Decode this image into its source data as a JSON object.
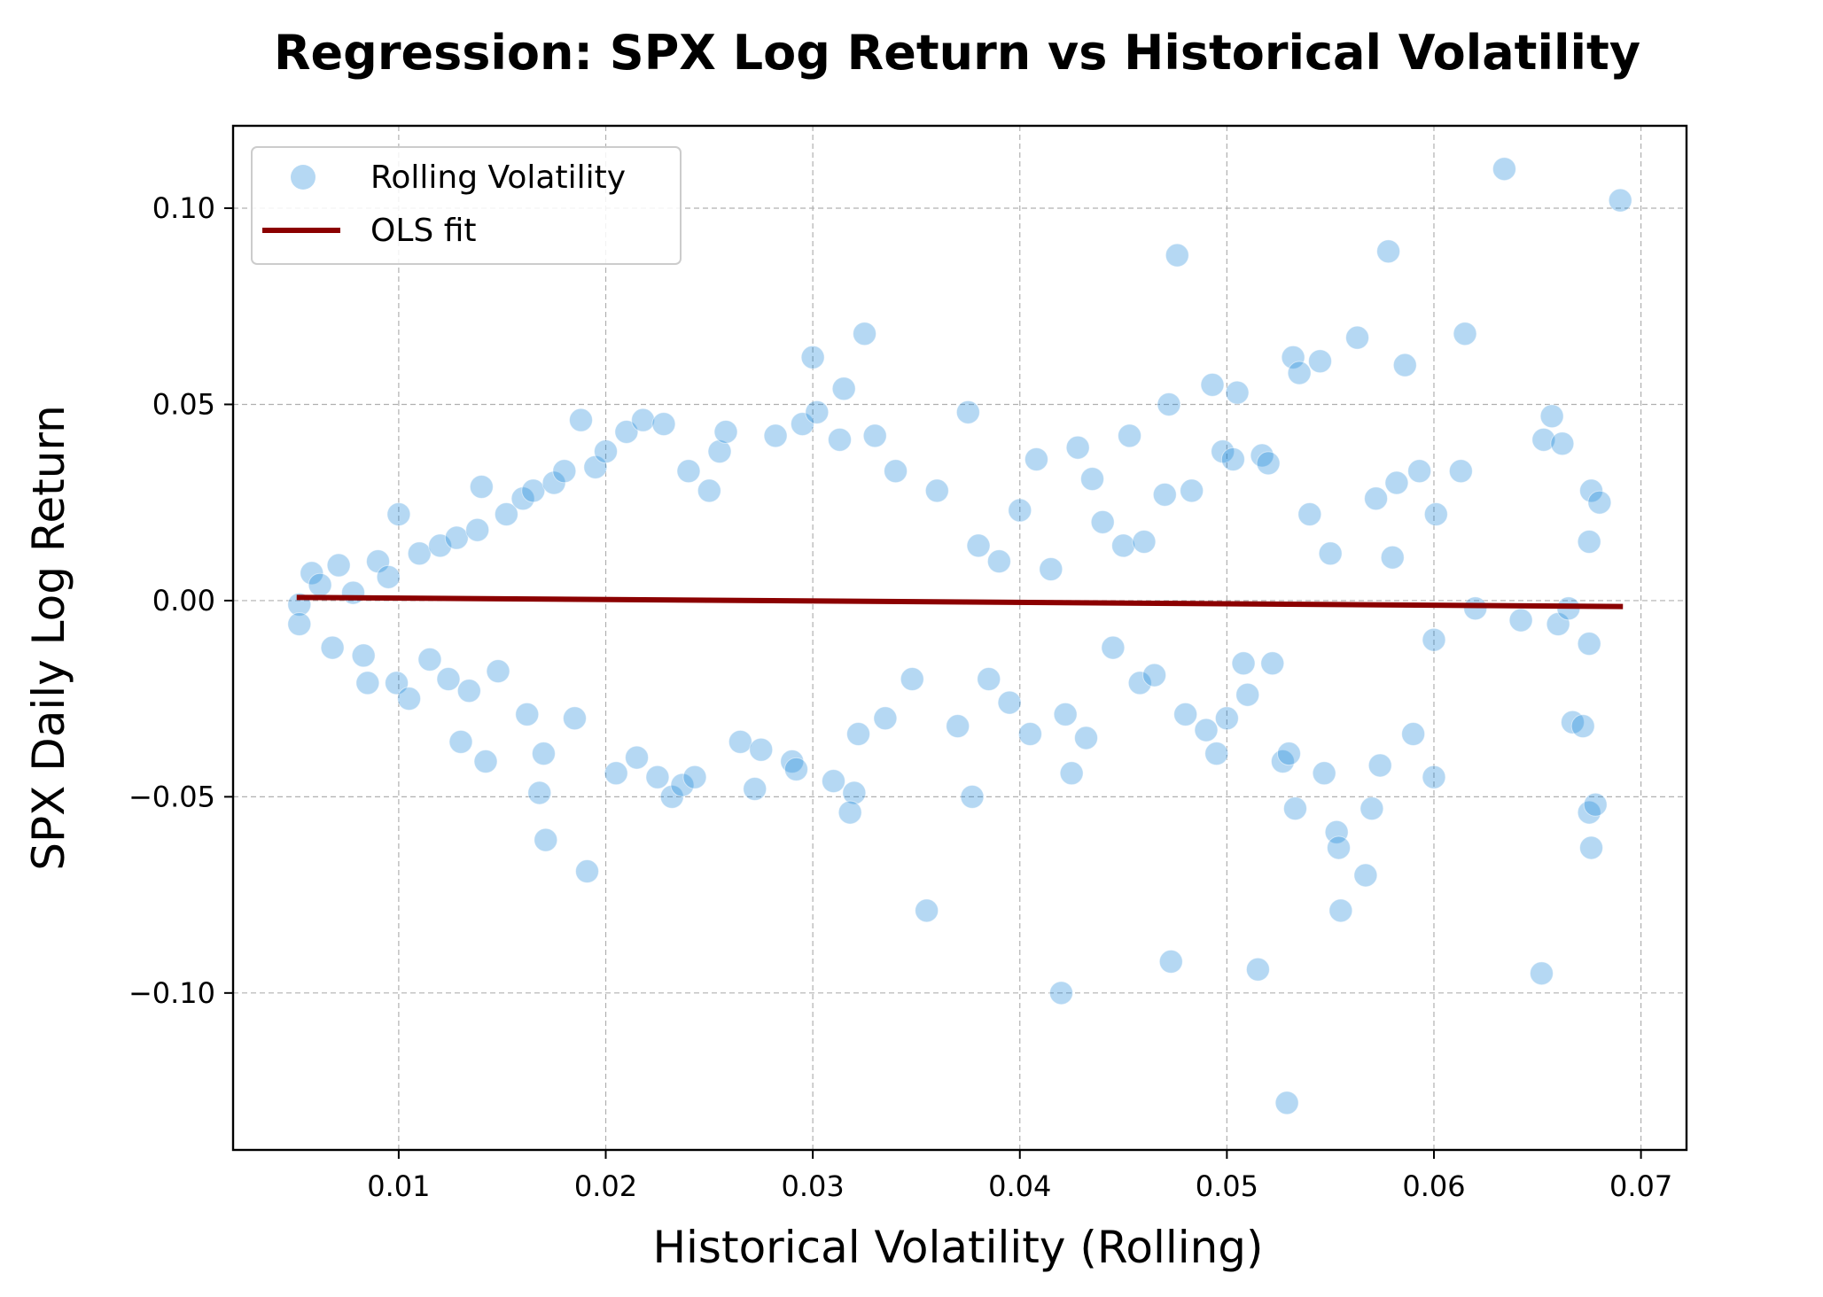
{
  "chart_data": {
    "type": "scatter",
    "title": "Regression: SPX Log Return vs Historical Volatility",
    "xlabel": "Historical Volatility (Rolling)",
    "ylabel": "SPX Daily Log Return",
    "xlim": [
      0.002,
      0.0722
    ],
    "ylim": [
      -0.14,
      0.121
    ],
    "xticks": [
      0.01,
      0.02,
      0.03,
      0.04,
      0.05,
      0.06,
      0.07
    ],
    "xtick_labels": [
      "0.01",
      "0.02",
      "0.03",
      "0.04",
      "0.05",
      "0.06",
      "0.07"
    ],
    "yticks": [
      -0.1,
      -0.05,
      0.0,
      0.05,
      0.1
    ],
    "ytick_labels": [
      "−0.10",
      "−0.05",
      "0.00",
      "0.05",
      "0.10"
    ],
    "grid": true,
    "legend_position": "top-left",
    "series": [
      {
        "name": "Rolling Volatility",
        "kind": "scatter",
        "color": "#0a7fd6",
        "opacity": 0.3,
        "points": [
          [
            0.0052,
            -0.001
          ],
          [
            0.0052,
            -0.006
          ],
          [
            0.0058,
            0.007
          ],
          [
            0.0062,
            0.004
          ],
          [
            0.0068,
            -0.012
          ],
          [
            0.0071,
            0.009
          ],
          [
            0.0078,
            0.002
          ],
          [
            0.0083,
            -0.014
          ],
          [
            0.0085,
            -0.021
          ],
          [
            0.009,
            0.01
          ],
          [
            0.0095,
            0.006
          ],
          [
            0.0099,
            -0.021
          ],
          [
            0.01,
            0.022
          ],
          [
            0.0105,
            -0.025
          ],
          [
            0.011,
            0.012
          ],
          [
            0.0115,
            -0.015
          ],
          [
            0.012,
            0.014
          ],
          [
            0.0124,
            -0.02
          ],
          [
            0.0128,
            0.016
          ],
          [
            0.013,
            -0.036
          ],
          [
            0.0134,
            -0.023
          ],
          [
            0.0138,
            0.018
          ],
          [
            0.014,
            0.029
          ],
          [
            0.0142,
            -0.041
          ],
          [
            0.0148,
            -0.018
          ],
          [
            0.0152,
            0.022
          ],
          [
            0.016,
            0.026
          ],
          [
            0.0162,
            -0.029
          ],
          [
            0.0165,
            0.028
          ],
          [
            0.0168,
            -0.049
          ],
          [
            0.017,
            -0.039
          ],
          [
            0.0171,
            -0.061
          ],
          [
            0.0175,
            0.03
          ],
          [
            0.018,
            0.033
          ],
          [
            0.0185,
            -0.03
          ],
          [
            0.0188,
            0.046
          ],
          [
            0.0191,
            -0.069
          ],
          [
            0.0195,
            0.034
          ],
          [
            0.02,
            0.038
          ],
          [
            0.0205,
            -0.044
          ],
          [
            0.021,
            0.043
          ],
          [
            0.0215,
            -0.04
          ],
          [
            0.0218,
            0.046
          ],
          [
            0.0225,
            -0.045
          ],
          [
            0.0228,
            0.045
          ],
          [
            0.0232,
            -0.05
          ],
          [
            0.0237,
            -0.047
          ],
          [
            0.024,
            0.033
          ],
          [
            0.0243,
            -0.045
          ],
          [
            0.025,
            0.028
          ],
          [
            0.0255,
            0.038
          ],
          [
            0.0258,
            0.043
          ],
          [
            0.0265,
            -0.036
          ],
          [
            0.0272,
            -0.048
          ],
          [
            0.0275,
            -0.038
          ],
          [
            0.0282,
            0.042
          ],
          [
            0.029,
            -0.041
          ],
          [
            0.0292,
            -0.043
          ],
          [
            0.0295,
            0.045
          ],
          [
            0.03,
            0.062
          ],
          [
            0.0302,
            0.048
          ],
          [
            0.031,
            -0.046
          ],
          [
            0.0313,
            0.041
          ],
          [
            0.0315,
            0.054
          ],
          [
            0.032,
            -0.049
          ],
          [
            0.0322,
            -0.034
          ],
          [
            0.0325,
            0.068
          ],
          [
            0.0318,
            -0.054
          ],
          [
            0.033,
            0.042
          ],
          [
            0.0335,
            -0.03
          ],
          [
            0.034,
            0.033
          ],
          [
            0.0348,
            -0.02
          ],
          [
            0.0355,
            -0.079
          ],
          [
            0.036,
            0.028
          ],
          [
            0.037,
            -0.032
          ],
          [
            0.0375,
            0.048
          ],
          [
            0.0377,
            -0.05
          ],
          [
            0.038,
            0.014
          ],
          [
            0.0385,
            -0.02
          ],
          [
            0.039,
            0.01
          ],
          [
            0.0395,
            -0.026
          ],
          [
            0.04,
            0.023
          ],
          [
            0.0405,
            -0.034
          ],
          [
            0.0408,
            0.036
          ],
          [
            0.0415,
            0.008
          ],
          [
            0.042,
            -0.1
          ],
          [
            0.0422,
            -0.029
          ],
          [
            0.0425,
            -0.044
          ],
          [
            0.0428,
            0.039
          ],
          [
            0.0432,
            -0.035
          ],
          [
            0.0435,
            0.031
          ],
          [
            0.044,
            0.02
          ],
          [
            0.0445,
            -0.012
          ],
          [
            0.045,
            0.014
          ],
          [
            0.0453,
            0.042
          ],
          [
            0.0458,
            -0.021
          ],
          [
            0.046,
            0.015
          ],
          [
            0.0465,
            -0.019
          ],
          [
            0.047,
            0.027
          ],
          [
            0.0472,
            0.05
          ],
          [
            0.0473,
            -0.092
          ],
          [
            0.0476,
            0.088
          ],
          [
            0.048,
            -0.029
          ],
          [
            0.0483,
            0.028
          ],
          [
            0.049,
            -0.033
          ],
          [
            0.0493,
            0.055
          ],
          [
            0.0495,
            -0.039
          ],
          [
            0.0498,
            0.038
          ],
          [
            0.05,
            -0.03
          ],
          [
            0.0503,
            0.036
          ],
          [
            0.0505,
            0.053
          ],
          [
            0.0508,
            -0.016
          ],
          [
            0.051,
            -0.024
          ],
          [
            0.0515,
            -0.094
          ],
          [
            0.0517,
            0.037
          ],
          [
            0.052,
            0.035
          ],
          [
            0.0522,
            -0.016
          ],
          [
            0.0527,
            -0.041
          ],
          [
            0.0529,
            -0.128
          ],
          [
            0.053,
            -0.039
          ],
          [
            0.0532,
            0.062
          ],
          [
            0.0533,
            -0.053
          ],
          [
            0.0535,
            0.058
          ],
          [
            0.054,
            0.022
          ],
          [
            0.0545,
            0.061
          ],
          [
            0.0547,
            -0.044
          ],
          [
            0.055,
            0.012
          ],
          [
            0.0553,
            -0.059
          ],
          [
            0.0554,
            -0.063
          ],
          [
            0.0555,
            -0.079
          ],
          [
            0.0563,
            0.067
          ],
          [
            0.0567,
            -0.07
          ],
          [
            0.057,
            -0.053
          ],
          [
            0.0572,
            0.026
          ],
          [
            0.0574,
            -0.042
          ],
          [
            0.0578,
            0.089
          ],
          [
            0.058,
            0.011
          ],
          [
            0.0582,
            0.03
          ],
          [
            0.0586,
            0.06
          ],
          [
            0.059,
            -0.034
          ],
          [
            0.0593,
            0.033
          ],
          [
            0.06,
            -0.045
          ],
          [
            0.0601,
            0.022
          ],
          [
            0.0613,
            0.033
          ],
          [
            0.0615,
            0.068
          ],
          [
            0.0634,
            0.11
          ],
          [
            0.0642,
            -0.005
          ],
          [
            0.0652,
            -0.095
          ],
          [
            0.0653,
            0.041
          ],
          [
            0.0657,
            0.047
          ],
          [
            0.0662,
            0.04
          ],
          [
            0.0667,
            -0.031
          ],
          [
            0.0672,
            -0.032
          ],
          [
            0.0675,
            -0.054
          ],
          [
            0.0676,
            -0.063
          ],
          [
            0.0676,
            0.028
          ],
          [
            0.0678,
            -0.052
          ],
          [
            0.068,
            0.025
          ],
          [
            0.069,
            0.102
          ],
          [
            0.0675,
            0.015
          ],
          [
            0.0675,
            -0.011
          ],
          [
            0.066,
            -0.006
          ],
          [
            0.0665,
            -0.002
          ],
          [
            0.062,
            -0.002
          ],
          [
            0.06,
            -0.01
          ]
        ]
      },
      {
        "name": "OLS fit",
        "kind": "line",
        "color": "#8b0000",
        "points": [
          [
            0.0052,
            0.0008
          ],
          [
            0.069,
            -0.0015
          ]
        ]
      }
    ]
  }
}
